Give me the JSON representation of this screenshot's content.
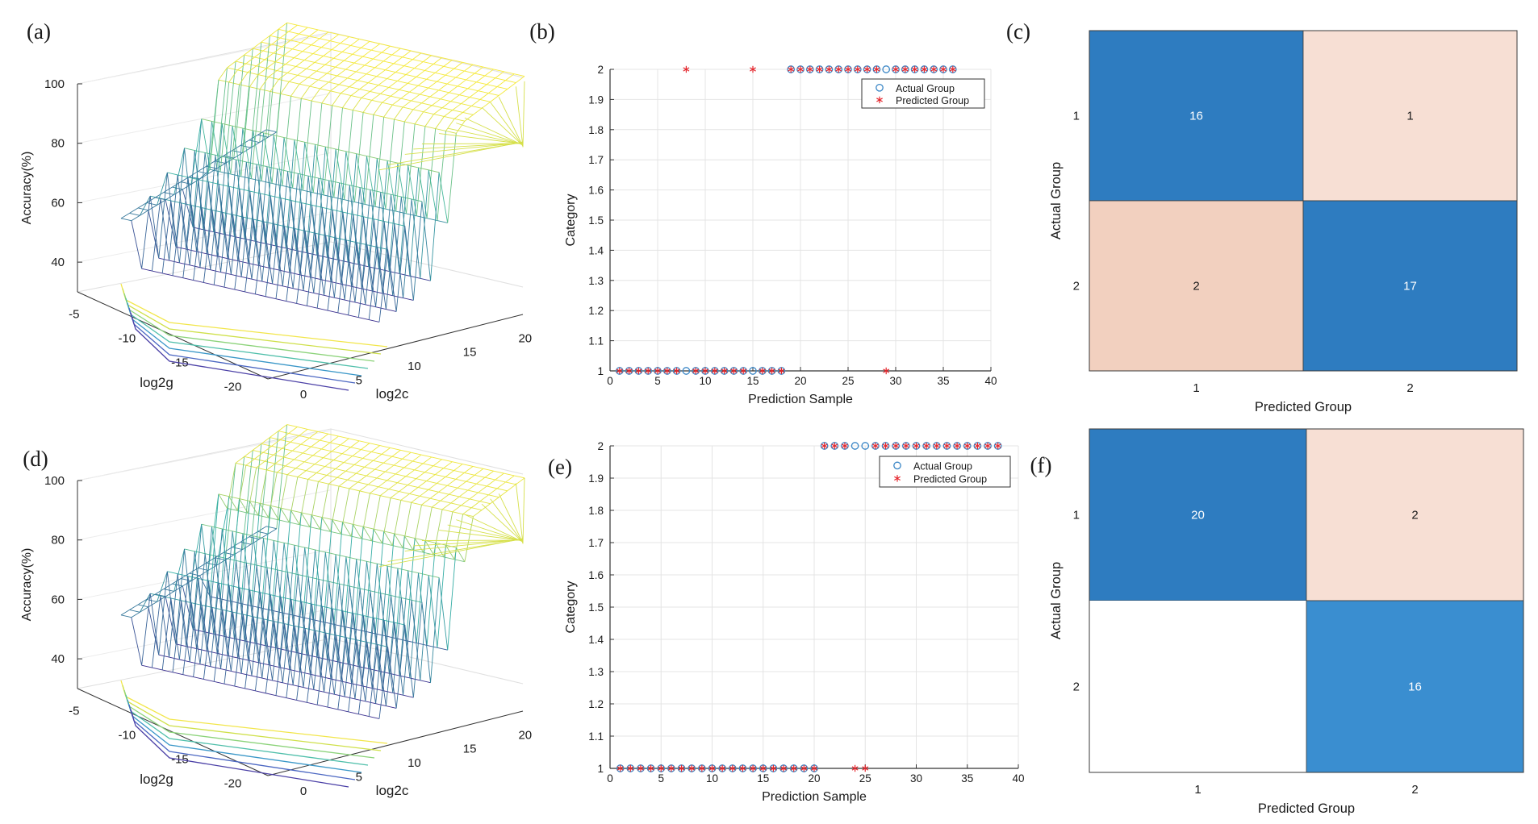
{
  "figure": {
    "panel_labels": [
      "(a)",
      "(b)",
      "(c)",
      "(d)",
      "(e)",
      "(f)"
    ]
  },
  "chart_data": [
    {
      "panel": "(a)",
      "type": "surface3d",
      "title": "",
      "xlabel": "log2g",
      "ylabel": "log2c",
      "zlabel": "Accuracy(%)",
      "xticks": [
        -5,
        -10,
        -15,
        -20
      ],
      "yticks": [
        0,
        5,
        10,
        15,
        20
      ],
      "zticks": [
        40,
        60,
        80,
        100
      ],
      "colors": {
        "low": "#3b2f8f",
        "mid": "#35b2a6",
        "high": "#f5e93a"
      }
    },
    {
      "panel": "(b)",
      "type": "scatter",
      "xlabel": "Prediction Sample",
      "ylabel": "Category",
      "xlim": [
        0,
        40
      ],
      "ylim": [
        1,
        2
      ],
      "xticks": [
        0,
        5,
        10,
        15,
        20,
        25,
        30,
        35,
        40
      ],
      "yticks": [
        "1",
        "1.1",
        "1.2",
        "1.3",
        "1.4",
        "1.5",
        "1.6",
        "1.7",
        "1.8",
        "1.9",
        "2"
      ],
      "legend": [
        "Actual Group",
        "Predicted Group"
      ],
      "legend_position": "top-right",
      "series": [
        {
          "name": "Actual Group",
          "marker": "circle",
          "color": "#3a86c6",
          "x": [
            1,
            2,
            3,
            4,
            5,
            6,
            7,
            8,
            9,
            10,
            11,
            12,
            13,
            14,
            15,
            16,
            17,
            18,
            19,
            20,
            21,
            22,
            23,
            24,
            25,
            26,
            27,
            28,
            29,
            30,
            31,
            32,
            33,
            34,
            35,
            36
          ],
          "y": [
            1,
            1,
            1,
            1,
            1,
            1,
            1,
            1,
            1,
            1,
            1,
            1,
            1,
            1,
            1,
            1,
            1,
            1,
            2,
            2,
            2,
            2,
            2,
            2,
            2,
            2,
            2,
            2,
            2,
            2,
            2,
            2,
            2,
            2,
            2,
            2
          ]
        },
        {
          "name": "Predicted Group",
          "marker": "asterisk",
          "color": "#e5262d",
          "x": [
            1,
            2,
            3,
            4,
            5,
            6,
            7,
            8,
            9,
            10,
            11,
            12,
            13,
            14,
            15,
            16,
            17,
            18,
            19,
            20,
            21,
            22,
            23,
            24,
            25,
            26,
            27,
            28,
            29,
            30,
            31,
            32,
            33,
            34,
            35,
            36
          ],
          "y": [
            1,
            1,
            1,
            1,
            1,
            1,
            1,
            2,
            1,
            1,
            1,
            1,
            1,
            1,
            2,
            1,
            1,
            1,
            2,
            2,
            2,
            2,
            2,
            2,
            2,
            2,
            2,
            2,
            1,
            2,
            2,
            2,
            2,
            2,
            2,
            2
          ]
        }
      ]
    },
    {
      "panel": "(c)",
      "type": "heatmap",
      "xlabel": "Predicted Group",
      "ylabel": "Actual Group",
      "categories": [
        "1",
        "2"
      ],
      "values": [
        [
          16,
          1
        ],
        [
          2,
          17
        ]
      ],
      "cell_colors": [
        [
          "#2e7cc0",
          "#f7dfd4"
        ],
        [
          "#f2d0bf",
          "#2e7cc0"
        ]
      ]
    },
    {
      "panel": "(d)",
      "type": "surface3d",
      "title": "",
      "xlabel": "log2g",
      "ylabel": "log2c",
      "zlabel": "Accuracy(%)",
      "xticks": [
        -5,
        -10,
        -15,
        -20
      ],
      "yticks": [
        0,
        5,
        10,
        15,
        20
      ],
      "zticks": [
        40,
        60,
        80,
        100
      ],
      "colors": {
        "low": "#3b2f8f",
        "mid": "#35b2a6",
        "high": "#f5e93a"
      }
    },
    {
      "panel": "(e)",
      "type": "scatter",
      "xlabel": "Prediction Sample",
      "ylabel": "Category",
      "xlim": [
        0,
        40
      ],
      "ylim": [
        1,
        2
      ],
      "xticks": [
        0,
        5,
        10,
        15,
        20,
        25,
        30,
        35,
        40
      ],
      "yticks": [
        "1",
        "1.1",
        "1.2",
        "1.3",
        "1.4",
        "1.5",
        "1.6",
        "1.7",
        "1.8",
        "1.9",
        "2"
      ],
      "legend": [
        "Actual Group",
        "Predicted Group"
      ],
      "legend_position": "top-right",
      "series": [
        {
          "name": "Actual Group",
          "marker": "circle",
          "color": "#3a86c6",
          "x": [
            1,
            2,
            3,
            4,
            5,
            6,
            7,
            8,
            9,
            10,
            11,
            12,
            13,
            14,
            15,
            16,
            17,
            18,
            19,
            20,
            21,
            22,
            23,
            24,
            25,
            26,
            27,
            28,
            29,
            30,
            31,
            32,
            33,
            34,
            35,
            36,
            37,
            38
          ],
          "y": [
            1,
            1,
            1,
            1,
            1,
            1,
            1,
            1,
            1,
            1,
            1,
            1,
            1,
            1,
            1,
            1,
            1,
            1,
            1,
            1,
            2,
            2,
            2,
            2,
            2,
            2,
            2,
            2,
            2,
            2,
            2,
            2,
            2,
            2,
            2,
            2,
            2,
            2
          ]
        },
        {
          "name": "Predicted Group",
          "marker": "asterisk",
          "color": "#e5262d",
          "x": [
            1,
            2,
            3,
            4,
            5,
            6,
            7,
            8,
            9,
            10,
            11,
            12,
            13,
            14,
            15,
            16,
            17,
            18,
            19,
            20,
            21,
            22,
            23,
            24,
            25,
            26,
            27,
            28,
            29,
            30,
            31,
            32,
            33,
            34,
            35,
            36,
            37,
            38
          ],
          "y": [
            1,
            1,
            1,
            1,
            1,
            1,
            1,
            1,
            1,
            1,
            1,
            1,
            1,
            1,
            1,
            1,
            1,
            1,
            1,
            1,
            2,
            2,
            2,
            1,
            1,
            2,
            2,
            2,
            2,
            2,
            2,
            2,
            2,
            2,
            2,
            2,
            2,
            2
          ]
        }
      ]
    },
    {
      "panel": "(f)",
      "type": "heatmap",
      "xlabel": "Predicted Group",
      "ylabel": "Actual Group",
      "categories": [
        "1",
        "2"
      ],
      "values": [
        [
          20,
          2
        ],
        [
          0,
          16
        ]
      ],
      "cell_labels": [
        [
          "20",
          "2"
        ],
        [
          "",
          "16"
        ]
      ],
      "cell_colors": [
        [
          "#2e7cc0",
          "#f7dfd4"
        ],
        [
          "#ffffff",
          "#3a8ed0"
        ]
      ]
    }
  ]
}
